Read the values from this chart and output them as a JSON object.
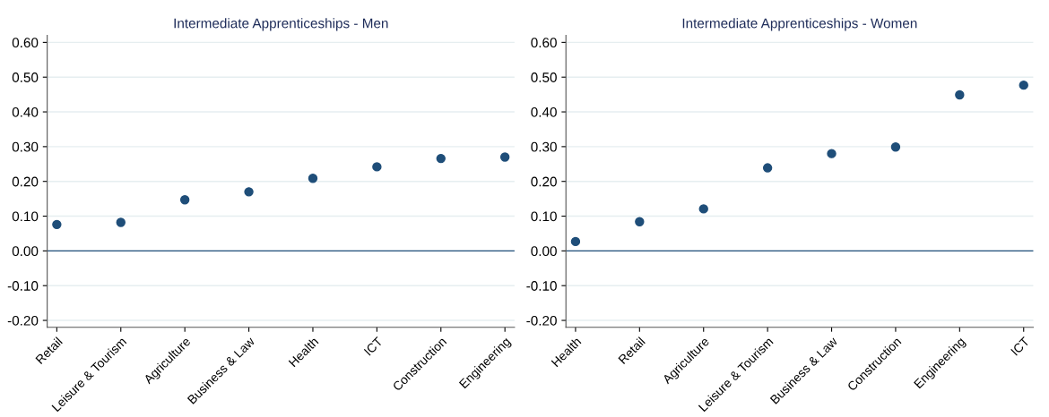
{
  "chart_data": [
    {
      "type": "scatter",
      "title": "Intermediate Apprenticeships - Men",
      "categories": [
        "Retail",
        "Leisure & Tourism",
        "Agriculture",
        "Business & Law",
        "Health",
        "ICT",
        "Construction",
        "Engineering"
      ],
      "series": [
        {
          "color": "#1f4e79",
          "values": [
            0.076,
            0.082,
            0.147,
            0.17,
            0.209,
            0.242,
            0.266,
            0.27
          ]
        }
      ],
      "ylim": [
        -0.22,
        0.62
      ],
      "yticks": [
        {
          "value": -0.2,
          "label": "-0.20"
        },
        {
          "value": -0.1,
          "label": "-0.10"
        },
        {
          "value": 0,
          "label": "0.00"
        },
        {
          "value": 0.1,
          "label": "0.10"
        },
        {
          "value": 0.2,
          "label": "0.20"
        },
        {
          "value": 0.3,
          "label": "0.30"
        },
        {
          "value": 0.4,
          "label": "0.40"
        },
        {
          "value": 0.5,
          "label": "0.50"
        },
        {
          "value": 0.6,
          "label": "0.60"
        }
      ],
      "grid": "y",
      "marker": "circle",
      "legend": false,
      "ref_lines": [
        {
          "axis": "y",
          "value": 0,
          "color": "#1f4e79"
        }
      ]
    },
    {
      "type": "scatter",
      "title": "Intermediate Apprenticeships - Women",
      "categories": [
        "Health",
        "Retail",
        "Agriculture",
        "Leisure & Tourism",
        "Business & Law",
        "Construction",
        "Engineering",
        "ICT"
      ],
      "series": [
        {
          "color": "#1f4e79",
          "values": [
            0.027,
            0.084,
            0.121,
            0.239,
            0.28,
            0.299,
            0.449,
            0.477
          ]
        }
      ],
      "ylim": [
        -0.22,
        0.62
      ],
      "yticks": [
        {
          "value": -0.2,
          "label": "-0.20"
        },
        {
          "value": -0.1,
          "label": "-0.10"
        },
        {
          "value": 0,
          "label": "0.00"
        },
        {
          "value": 0.1,
          "label": "0.10"
        },
        {
          "value": 0.2,
          "label": "0.20"
        },
        {
          "value": 0.3,
          "label": "0.30"
        },
        {
          "value": 0.4,
          "label": "0.40"
        },
        {
          "value": 0.5,
          "label": "0.50"
        },
        {
          "value": 0.6,
          "label": "0.60"
        }
      ],
      "grid": "y",
      "marker": "circle",
      "legend": false,
      "ref_lines": [
        {
          "axis": "y",
          "value": 0,
          "color": "#1f4e79"
        }
      ]
    }
  ]
}
